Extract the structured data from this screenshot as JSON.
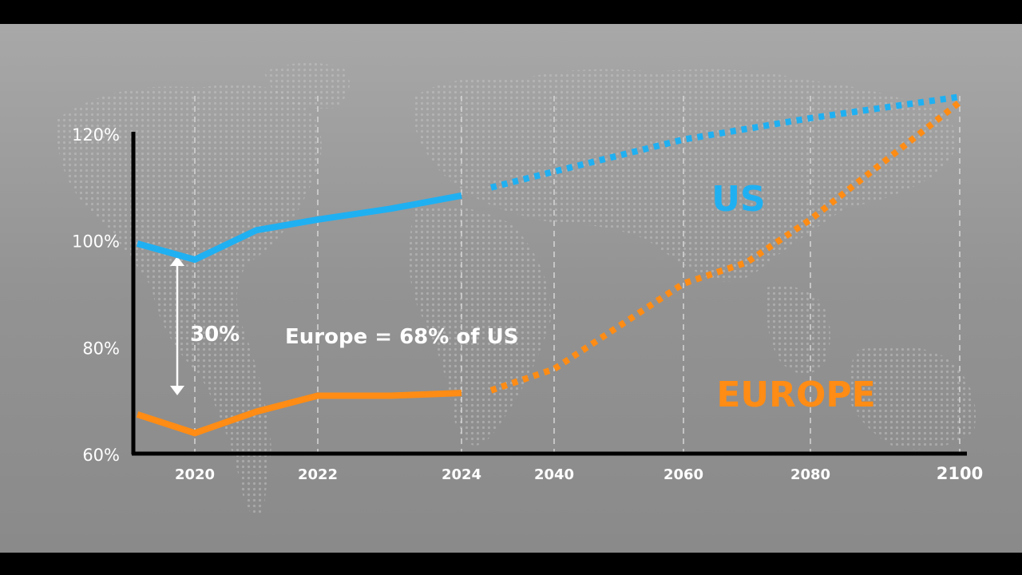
{
  "colors": {
    "us": "#1fb0f2",
    "europe": "#ff8c14",
    "axis": "#000000",
    "text": "#ffffff",
    "highlight_tick": "#e02020",
    "background": "#9b9b9b"
  },
  "chart_data": {
    "type": "line",
    "title": "",
    "xlabel": "",
    "ylabel": "",
    "ylim": [
      60,
      120
    ],
    "y_ticks": [
      "120%",
      "100%",
      "80%",
      "60%"
    ],
    "x_ticks": [
      "2020",
      "2022",
      "2024",
      "2040",
      "2060",
      "2080",
      "2100"
    ],
    "x_tick_highlight": "2100",
    "grid": "vertical dashed",
    "series": [
      {
        "name": "US",
        "style": "solid",
        "points": [
          [
            2019,
            99.5
          ],
          [
            2020,
            96.5
          ],
          [
            2021,
            102
          ],
          [
            2022,
            104
          ],
          [
            2023,
            106
          ],
          [
            2024,
            108.5
          ]
        ]
      },
      {
        "name": "US",
        "style": "dotted",
        "points": [
          [
            2030,
            110
          ],
          [
            2040,
            113
          ],
          [
            2060,
            119
          ],
          [
            2080,
            123
          ],
          [
            2100,
            127
          ]
        ]
      },
      {
        "name": "EUROPE",
        "style": "solid",
        "points": [
          [
            2019,
            67.5
          ],
          [
            2020,
            64
          ],
          [
            2021,
            68
          ],
          [
            2022,
            71
          ],
          [
            2023,
            71
          ],
          [
            2024,
            71.5
          ]
        ]
      },
      {
        "name": "EUROPE",
        "style": "dotted",
        "points": [
          [
            2030,
            72
          ],
          [
            2040,
            76
          ],
          [
            2060,
            92
          ],
          [
            2070,
            96
          ],
          [
            2080,
            104
          ],
          [
            2100,
            126
          ]
        ]
      }
    ],
    "annotations": {
      "gap": "30%",
      "ratio": "Europe = 68% of US"
    }
  }
}
